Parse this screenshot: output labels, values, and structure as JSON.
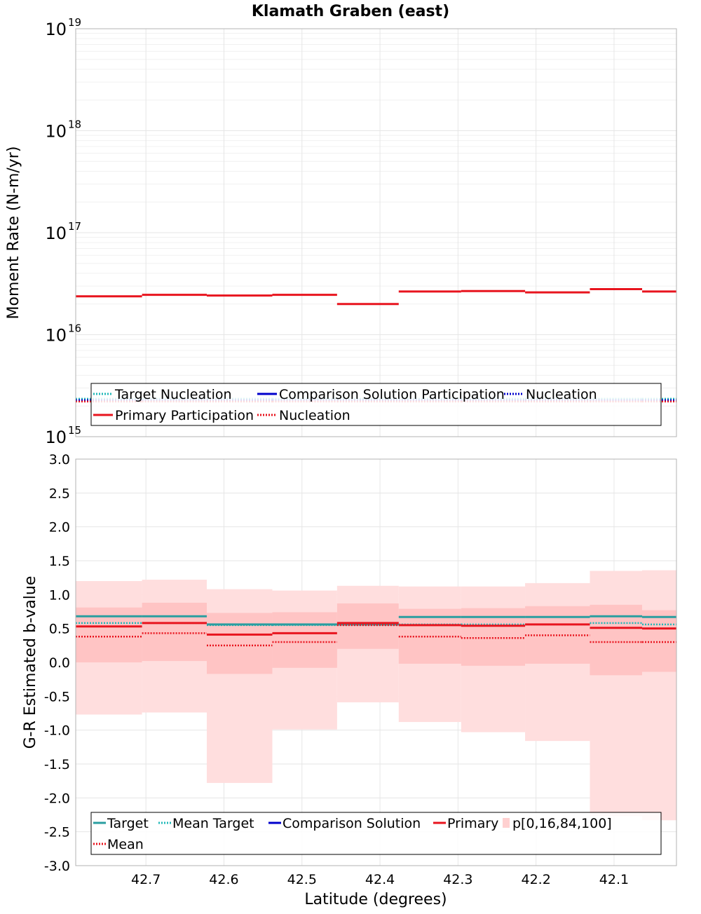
{
  "title": "Klamath Graben (east)",
  "xlabel": "Latitude (degrees)",
  "colors": {
    "target": "#2a9ea0",
    "target_dotted": "#22b8b8",
    "comparison": "#0000cc",
    "primary": "#e8141e",
    "band_outer": "#ffdede",
    "band_inner": "#ffc4c4"
  },
  "chart_data": [
    {
      "type": "line",
      "name": "moment-rate",
      "ylabel": "Moment Rate (N-m/yr)",
      "yscale": "log",
      "ylim": [
        1000000000000000.0,
        1e+19
      ],
      "xlim": [
        42.79,
        42.02
      ],
      "x_ticks": [
        42.7,
        42.6,
        42.5,
        42.4,
        42.3,
        42.2,
        42.1
      ],
      "y_ticks": [
        {
          "value": 1000000000000000.0,
          "base": "10",
          "exp": "15"
        },
        {
          "value": 1e+16,
          "base": "10",
          "exp": "16"
        },
        {
          "value": 1e+17,
          "base": "10",
          "exp": "17"
        },
        {
          "value": 1e+18,
          "base": "10",
          "exp": "18"
        },
        {
          "value": 1e+19,
          "base": "10",
          "exp": "19"
        }
      ],
      "segments": [
        {
          "x0": 42.79,
          "x1": 42.705,
          "primary_participation": 2.38e+16,
          "nucleation": 2300000000000000.0
        },
        {
          "x0": 42.705,
          "x1": 42.622,
          "primary_participation": 2.46e+16,
          "nucleation": 2300000000000000.0
        },
        {
          "x0": 42.622,
          "x1": 42.538,
          "primary_participation": 2.42e+16,
          "nucleation": 2300000000000000.0
        },
        {
          "x0": 42.538,
          "x1": 42.455,
          "primary_participation": 2.46e+16,
          "nucleation": 2300000000000000.0
        },
        {
          "x0": 42.455,
          "x1": 42.376,
          "primary_participation": 2e+16,
          "nucleation": 2300000000000000.0
        },
        {
          "x0": 42.376,
          "x1": 42.296,
          "primary_participation": 2.65e+16,
          "nucleation": 2300000000000000.0
        },
        {
          "x0": 42.296,
          "x1": 42.214,
          "primary_participation": 2.68e+16,
          "nucleation": 2300000000000000.0
        },
        {
          "x0": 42.214,
          "x1": 42.131,
          "primary_participation": 2.6e+16,
          "nucleation": 2300000000000000.0
        },
        {
          "x0": 42.131,
          "x1": 42.064,
          "primary_participation": 2.8e+16,
          "nucleation": 2300000000000000.0
        },
        {
          "x0": 42.064,
          "x1": 42.02,
          "primary_participation": 2.65e+16,
          "nucleation": 2300000000000000.0
        }
      ],
      "legend": {
        "placement": "bottom",
        "items": [
          {
            "label": "Target Nucleation",
            "style": "dotted",
            "color": "#22b8b8"
          },
          {
            "label": "Comparison Solution Participation",
            "style": "solid",
            "color": "#0000cc"
          },
          {
            "label": "Nucleation",
            "style": "dotted",
            "color": "#0000cc"
          },
          {
            "label": "Primary Participation",
            "style": "solid",
            "color": "#e8141e"
          },
          {
            "label": "Nucleation",
            "style": "dotted",
            "color": "#e8141e"
          }
        ]
      }
    },
    {
      "type": "line",
      "name": "b-value",
      "ylabel": "G-R Estimated b-value",
      "ylim": [
        -3.0,
        3.0
      ],
      "xlim": [
        42.79,
        42.02
      ],
      "x_ticks": [
        42.7,
        42.6,
        42.5,
        42.4,
        42.3,
        42.2,
        42.1
      ],
      "y_ticks": [
        "3.0",
        "2.5",
        "2.0",
        "1.5",
        "1.0",
        "0.5",
        "0.0",
        "-0.5",
        "-1.0",
        "-1.5",
        "-2.0",
        "-2.5",
        "-3.0"
      ],
      "segments": [
        {
          "x0": 42.79,
          "x1": 42.705,
          "target": 0.68,
          "mean_target": 0.58,
          "primary": 0.53,
          "mean": 0.38,
          "p0": -0.77,
          "p16": 0.0,
          "p84": 0.81,
          "p100": 1.2
        },
        {
          "x0": 42.705,
          "x1": 42.622,
          "target": 0.68,
          "mean_target": 0.58,
          "primary": 0.58,
          "mean": 0.43,
          "p0": -0.74,
          "p16": 0.02,
          "p84": 0.88,
          "p100": 1.22
        },
        {
          "x0": 42.622,
          "x1": 42.538,
          "target": 0.56,
          "mean_target": 0.55,
          "primary": 0.41,
          "mean": 0.25,
          "p0": -1.78,
          "p16": -0.17,
          "p84": 0.73,
          "p100": 1.08
        },
        {
          "x0": 42.538,
          "x1": 42.455,
          "target": 0.56,
          "mean_target": 0.55,
          "primary": 0.43,
          "mean": 0.3,
          "p0": -0.99,
          "p16": -0.08,
          "p84": 0.74,
          "p100": 1.06
        },
        {
          "x0": 42.455,
          "x1": 42.376,
          "target": 0.56,
          "mean_target": 0.55,
          "primary": 0.58,
          "mean": 0.55,
          "p0": -0.59,
          "p16": 0.2,
          "p84": 0.87,
          "p100": 1.13
        },
        {
          "x0": 42.376,
          "x1": 42.296,
          "target": 0.67,
          "mean_target": 0.56,
          "primary": 0.55,
          "mean": 0.38,
          "p0": -0.88,
          "p16": -0.02,
          "p84": 0.79,
          "p100": 1.12
        },
        {
          "x0": 42.296,
          "x1": 42.214,
          "target": 0.67,
          "mean_target": 0.56,
          "primary": 0.54,
          "mean": 0.36,
          "p0": -1.03,
          "p16": -0.05,
          "p84": 0.8,
          "p100": 1.12
        },
        {
          "x0": 42.214,
          "x1": 42.131,
          "target": 0.67,
          "mean_target": 0.56,
          "primary": 0.56,
          "mean": 0.4,
          "p0": -1.16,
          "p16": -0.02,
          "p84": 0.83,
          "p100": 1.17
        },
        {
          "x0": 42.131,
          "x1": 42.064,
          "target": 0.68,
          "mean_target": 0.58,
          "primary": 0.51,
          "mean": 0.3,
          "p0": -2.27,
          "p16": -0.19,
          "p84": 0.85,
          "p100": 1.35
        },
        {
          "x0": 42.064,
          "x1": 42.02,
          "target": 0.67,
          "mean_target": 0.56,
          "primary": 0.5,
          "mean": 0.3,
          "p0": -2.33,
          "p16": -0.14,
          "p84": 0.77,
          "p100": 1.36
        }
      ],
      "legend": {
        "placement": "bottom",
        "items": [
          {
            "label": "Target",
            "style": "solid",
            "color": "#2a9ea0"
          },
          {
            "label": "Mean Target",
            "style": "dotted",
            "color": "#22b8b8"
          },
          {
            "label": "Comparison Solution",
            "style": "solid",
            "color": "#0000cc"
          },
          {
            "label": "Primary",
            "style": "solid",
            "color": "#e8141e"
          },
          {
            "label": "p[0,16,84,100]",
            "style": "box",
            "color": "#ffd0d0"
          },
          {
            "label": "Mean",
            "style": "dotted",
            "color": "#e8141e"
          }
        ]
      }
    }
  ]
}
